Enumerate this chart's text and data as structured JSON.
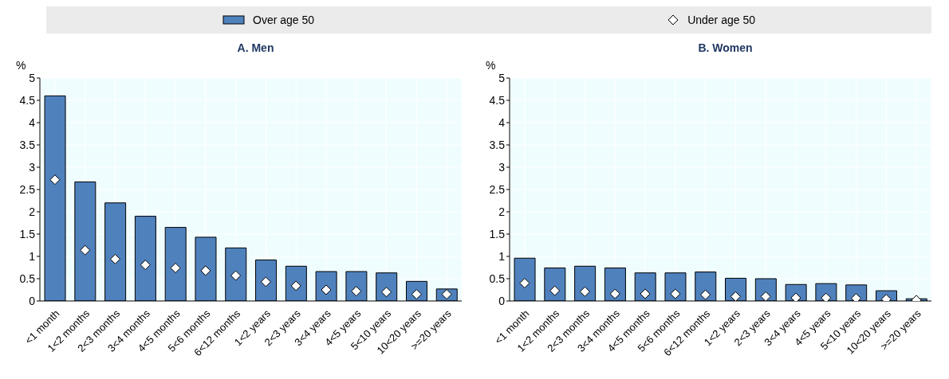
{
  "chart_data": [
    {
      "type": "bar",
      "title": "A. Men",
      "ylabel": "%",
      "categories": [
        "<1 month",
        "1<2 months",
        "2<3 months",
        "3<4 months",
        "4<5 months",
        "5<6 months",
        "6<12 months",
        "1<2 years",
        "2<3 years",
        "3<4 years",
        "4<5 years",
        "5<10 years",
        "10<20 years",
        ">=20 years"
      ],
      "series": [
        {
          "name": "Over age 50",
          "color": "#4f81bd",
          "values": [
            4.6,
            2.67,
            2.2,
            1.9,
            1.65,
            1.43,
            1.19,
            0.92,
            0.78,
            0.66,
            0.66,
            0.63,
            0.44,
            0.27
          ]
        },
        {
          "name": "Under age 50",
          "type": "scatter",
          "color": "#ffffff",
          "values": [
            2.72,
            1.14,
            0.94,
            0.81,
            0.74,
            0.68,
            0.57,
            0.43,
            0.34,
            0.25,
            0.22,
            0.2,
            0.15,
            0.15
          ]
        }
      ],
      "ylim": [
        0,
        5
      ],
      "yticks": [
        0,
        0.5,
        1,
        1.5,
        2,
        2.5,
        3,
        3.5,
        4,
        4.5,
        5
      ],
      "grid": true,
      "marker": "diamond",
      "legend": "top"
    },
    {
      "type": "bar",
      "title": "B. Women",
      "ylabel": "%",
      "categories": [
        "<1 month",
        "1<2 months",
        "2<3 months",
        "3<4 months",
        "4<5 months",
        "5<6 months",
        "6<12 months",
        "1<2 years",
        "2<3 years",
        "3<4 years",
        "4<5 years",
        "5<10 years",
        "10<20 years",
        ">=20 years"
      ],
      "series": [
        {
          "color": "#4f81bd",
          "values": [
            0.96,
            0.74,
            0.78,
            0.74,
            0.63,
            0.63,
            0.65,
            0.51,
            0.5,
            0.37,
            0.39,
            0.36,
            0.23,
            0.05
          ]
        },
        {
          "type": "scatter",
          "color": "#ffffff",
          "values": [
            0.4,
            0.23,
            0.21,
            0.16,
            0.16,
            0.16,
            0.14,
            0.1,
            0.1,
            0.07,
            0.07,
            0.06,
            0.04,
            0.02
          ]
        }
      ],
      "ylim": [
        0,
        5
      ],
      "yticks": [
        0,
        0.5,
        1,
        1.5,
        2,
        2.5,
        3,
        3.5,
        4,
        4.5,
        5
      ],
      "grid": true,
      "marker": "diamond"
    }
  ]
}
